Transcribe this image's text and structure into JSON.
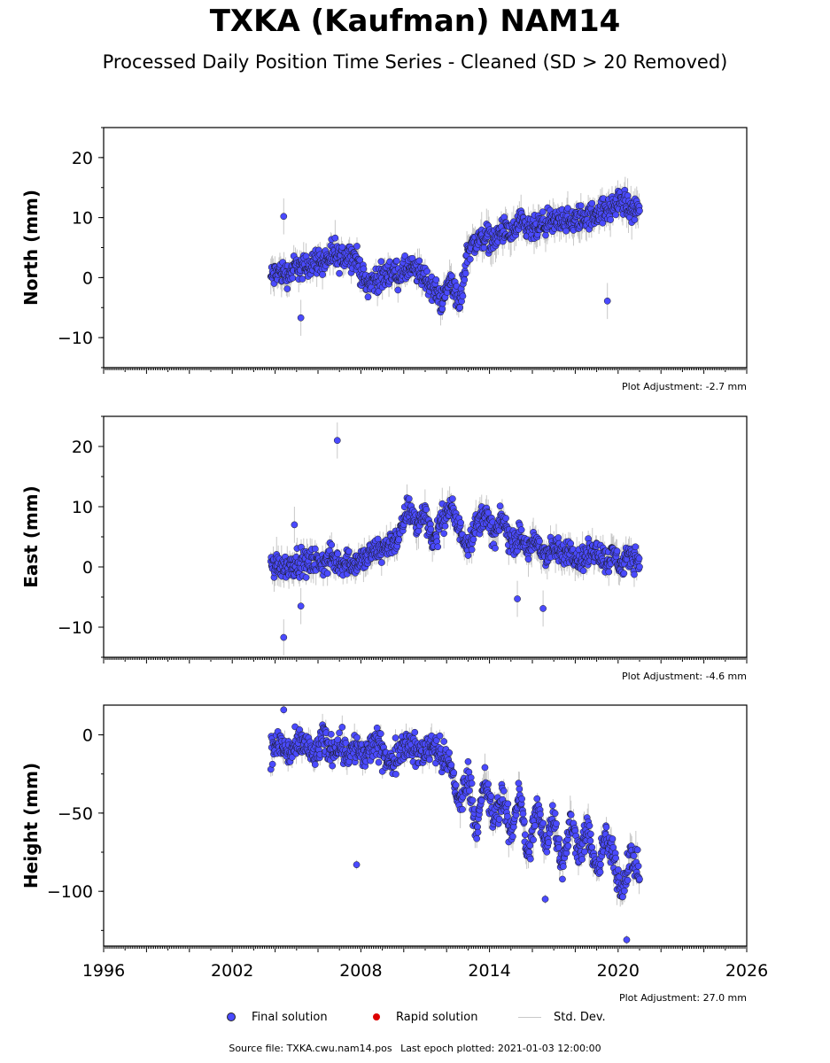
{
  "header": {
    "title": "TXKA (Kaufman) NAM14",
    "subtitle": "Processed Daily Position Time Series - Cleaned (SD > 20 Removed)"
  },
  "colors": {
    "final_solution": "#4a4aff",
    "rapid_solution": "#dd0000",
    "std_dev": "#c8c8c8",
    "axis": "#000000"
  },
  "legend": {
    "final": "Final solution",
    "rapid": "Rapid solution",
    "std": "Std. Dev."
  },
  "footer": {
    "source": "Source file: TXKA.cwu.nam14.pos",
    "last_epoch": "Last epoch plotted: 2021-01-03 12:00:00"
  },
  "chart_data": [
    {
      "type": "scatter",
      "component": "north",
      "ylabel": "North (mm)",
      "ylim": [
        -15,
        25
      ],
      "yticks": [
        20,
        10,
        0,
        -10
      ],
      "ytick_labels": [
        "20",
        "10",
        "0",
        "−10"
      ],
      "xlim": [
        1996,
        2026
      ],
      "x_tick_labels_shown": false,
      "adjustment": "Plot Adjustment: -2.7 mm",
      "x": [
        2003.8,
        2004.2,
        2004.6,
        2005.0,
        2005.4,
        2005.8,
        2006.2,
        2006.6,
        2007.0,
        2007.4,
        2007.8,
        2008.2,
        2008.6,
        2009.0,
        2009.4,
        2009.8,
        2010.2,
        2010.6,
        2011.0,
        2011.4,
        2011.8,
        2012.2,
        2012.6,
        2013.0,
        2013.4,
        2013.8,
        2014.2,
        2014.6,
        2015.0,
        2015.4,
        2015.8,
        2016.2,
        2016.6,
        2017.0,
        2017.4,
        2017.8,
        2018.2,
        2018.6,
        2019.0,
        2019.4,
        2019.8,
        2020.2,
        2020.6,
        2021.0
      ],
      "y": [
        0,
        1,
        0.5,
        2,
        1.5,
        3,
        2.5,
        3.5,
        3,
        4,
        3,
        -1,
        -0.5,
        0,
        1,
        0.5,
        1.5,
        1,
        0,
        -2,
        -4,
        0,
        -5,
        5,
        6,
        7,
        6,
        8,
        7,
        9,
        8,
        8,
        9,
        9,
        10,
        9,
        10,
        10,
        11,
        11,
        12,
        13,
        11,
        12
      ],
      "sigma": [
        3,
        3,
        3,
        2.5,
        2.5,
        2.5,
        2.5,
        2.5,
        2.5,
        2.5,
        2.5,
        2.5,
        2.5,
        2.5,
        2.5,
        2.5,
        2.5,
        2.5,
        2.5,
        2.5,
        3,
        3,
        3,
        3,
        3,
        3,
        3,
        3,
        3,
        3,
        3,
        3,
        3,
        3,
        3,
        3,
        3,
        3,
        3,
        3,
        3,
        3,
        3,
        3
      ],
      "outliers": [
        [
          2004.4,
          10.2
        ],
        [
          2005.2,
          -6.7
        ],
        [
          2006.8,
          6.6
        ],
        [
          2019.5,
          -3.9
        ]
      ]
    },
    {
      "type": "scatter",
      "component": "east",
      "ylabel": "East (mm)",
      "ylim": [
        -15,
        25
      ],
      "yticks": [
        20,
        10,
        0,
        -10
      ],
      "ytick_labels": [
        "20",
        "10",
        "0",
        "−10"
      ],
      "xlim": [
        1996,
        2026
      ],
      "x_tick_labels_shown": false,
      "adjustment": "Plot Adjustment: -4.6 mm",
      "x": [
        2003.8,
        2004.2,
        2004.6,
        2005.0,
        2005.4,
        2005.8,
        2006.2,
        2006.6,
        2007.0,
        2007.4,
        2007.8,
        2008.2,
        2008.6,
        2009.0,
        2009.4,
        2009.8,
        2010.2,
        2010.6,
        2011.0,
        2011.4,
        2011.8,
        2012.2,
        2012.6,
        2013.0,
        2013.4,
        2013.8,
        2014.2,
        2014.6,
        2015.0,
        2015.4,
        2015.8,
        2016.2,
        2016.6,
        2017.0,
        2017.4,
        2017.8,
        2018.2,
        2018.6,
        2019.0,
        2019.4,
        2019.8,
        2020.2,
        2020.6,
        2021.0
      ],
      "y": [
        0,
        0.5,
        0,
        1,
        0.5,
        1,
        0.5,
        1.5,
        0.5,
        1,
        0.5,
        1.5,
        2.5,
        3,
        4,
        5,
        10,
        7,
        9,
        4,
        8,
        10,
        6,
        4,
        7,
        9,
        5,
        8,
        4,
        5,
        3,
        4,
        2,
        3,
        2,
        3,
        1,
        2,
        3,
        1,
        2,
        0,
        2,
        1
      ],
      "sigma": [
        3,
        3,
        3,
        2.5,
        2.5,
        2.5,
        2.5,
        2.5,
        2.5,
        2.5,
        2.5,
        2.5,
        2.5,
        2.5,
        2.5,
        2.5,
        3,
        3,
        3,
        3,
        3,
        3,
        3,
        3,
        3,
        3,
        3,
        3,
        3,
        3,
        3,
        3,
        3,
        3,
        3,
        3,
        3,
        3,
        3,
        3,
        3,
        3,
        3,
        3
      ],
      "outliers": [
        [
          2004.4,
          -11.7
        ],
        [
          2005.2,
          -6.5
        ],
        [
          2006.9,
          21.0
        ],
        [
          2004.9,
          7.0
        ],
        [
          2016.5,
          -6.9
        ],
        [
          2015.3,
          -5.3
        ]
      ]
    },
    {
      "type": "scatter",
      "component": "height",
      "ylabel": "Height (mm)",
      "ylim": [
        -135,
        19
      ],
      "yticks": [
        0,
        -50,
        -100
      ],
      "ytick_labels": [
        "0",
        "−50",
        "−100"
      ],
      "xlim": [
        1996,
        2026
      ],
      "xticks": [
        1996,
        2002,
        2008,
        2014,
        2020,
        2026
      ],
      "x_tick_labels_shown": true,
      "adjustment": "Plot Adjustment: 27.0 mm",
      "x": [
        2003.8,
        2004.2,
        2004.6,
        2005.0,
        2005.4,
        2005.8,
        2006.2,
        2006.6,
        2007.0,
        2007.4,
        2007.8,
        2008.2,
        2008.6,
        2009.0,
        2009.4,
        2009.8,
        2010.2,
        2010.6,
        2011.0,
        2011.4,
        2011.8,
        2012.2,
        2012.6,
        2013.0,
        2013.4,
        2013.8,
        2014.2,
        2014.6,
        2015.0,
        2015.4,
        2015.8,
        2016.2,
        2016.6,
        2017.0,
        2017.4,
        2017.8,
        2018.2,
        2018.6,
        2019.0,
        2019.4,
        2019.8,
        2020.2,
        2020.6,
        2021.0
      ],
      "y": [
        -10,
        -5,
        -12,
        -8,
        -5,
        -15,
        -3,
        -10,
        -5,
        -12,
        -8,
        -15,
        -5,
        -10,
        -20,
        -8,
        -5,
        -12,
        -10,
        -5,
        -15,
        -20,
        -45,
        -25,
        -60,
        -30,
        -55,
        -40,
        -65,
        -35,
        -80,
        -45,
        -70,
        -50,
        -85,
        -55,
        -75,
        -60,
        -90,
        -65,
        -80,
        -100,
        -75,
        -90
      ],
      "sigma": [
        8,
        8,
        8,
        8,
        8,
        8,
        8,
        8,
        8,
        8,
        8,
        8,
        8,
        8,
        8,
        8,
        8,
        8,
        8,
        8,
        8,
        10,
        12,
        12,
        12,
        12,
        12,
        12,
        12,
        12,
        12,
        12,
        12,
        12,
        12,
        12,
        12,
        12,
        12,
        12,
        12,
        12,
        12,
        12
      ],
      "outliers": [
        [
          2007.8,
          -83
        ],
        [
          2004.4,
          16
        ],
        [
          2016.6,
          -105
        ],
        [
          2020.4,
          -131
        ]
      ]
    }
  ]
}
